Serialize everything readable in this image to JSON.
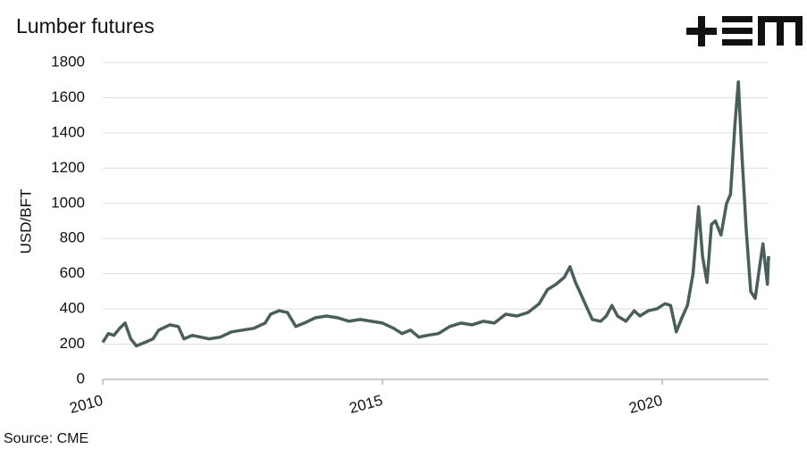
{
  "chart_data": {
    "type": "line",
    "title": "Lumber futures",
    "y_label": "USD/BFT",
    "source": "Source: CME",
    "xlim": [
      2010,
      2021.9
    ],
    "xticks": [
      2010,
      2015,
      2020
    ],
    "ylim": [
      0,
      1800
    ],
    "yticks": [
      0,
      200,
      400,
      600,
      800,
      1000,
      1200,
      1400,
      1600,
      1800
    ],
    "grid": true,
    "x": [
      2010.0,
      2010.1,
      2010.2,
      2010.3,
      2010.4,
      2010.5,
      2010.6,
      2010.75,
      2010.9,
      2011.0,
      2011.2,
      2011.35,
      2011.45,
      2011.6,
      2011.75,
      2011.9,
      2012.1,
      2012.3,
      2012.5,
      2012.7,
      2012.9,
      2013.0,
      2013.15,
      2013.3,
      2013.45,
      2013.6,
      2013.8,
      2014.0,
      2014.2,
      2014.4,
      2014.6,
      2014.8,
      2015.0,
      2015.2,
      2015.35,
      2015.5,
      2015.65,
      2015.8,
      2016.0,
      2016.2,
      2016.4,
      2016.6,
      2016.8,
      2017.0,
      2017.2,
      2017.4,
      2017.6,
      2017.8,
      2017.95,
      2018.1,
      2018.25,
      2018.35,
      2018.45,
      2018.55,
      2018.65,
      2018.75,
      2018.9,
      2019.0,
      2019.1,
      2019.2,
      2019.35,
      2019.5,
      2019.6,
      2019.75,
      2019.9,
      2020.05,
      2020.15,
      2020.25,
      2020.35,
      2020.45,
      2020.55,
      2020.65,
      2020.72,
      2020.8,
      2020.88,
      2020.95,
      2021.05,
      2021.15,
      2021.22,
      2021.3,
      2021.36,
      2021.42,
      2021.5,
      2021.58,
      2021.66,
      2021.74,
      2021.8,
      2021.88,
      2021.9
    ],
    "series": [
      {
        "name": "Lumber futures",
        "color": "#4a5e5c",
        "values": [
          210,
          260,
          250,
          290,
          320,
          230,
          190,
          210,
          230,
          280,
          310,
          300,
          230,
          250,
          240,
          230,
          240,
          270,
          280,
          290,
          320,
          370,
          390,
          380,
          300,
          320,
          350,
          360,
          350,
          330,
          340,
          330,
          320,
          290,
          260,
          280,
          240,
          250,
          260,
          300,
          320,
          310,
          330,
          320,
          370,
          360,
          380,
          430,
          510,
          540,
          580,
          640,
          550,
          480,
          410,
          340,
          330,
          360,
          420,
          360,
          330,
          390,
          360,
          390,
          400,
          430,
          420,
          270,
          350,
          420,
          600,
          980,
          700,
          550,
          880,
          900,
          820,
          1000,
          1050,
          1450,
          1690,
          1300,
          850,
          500,
          460,
          640,
          770,
          540,
          700
        ]
      }
    ]
  }
}
